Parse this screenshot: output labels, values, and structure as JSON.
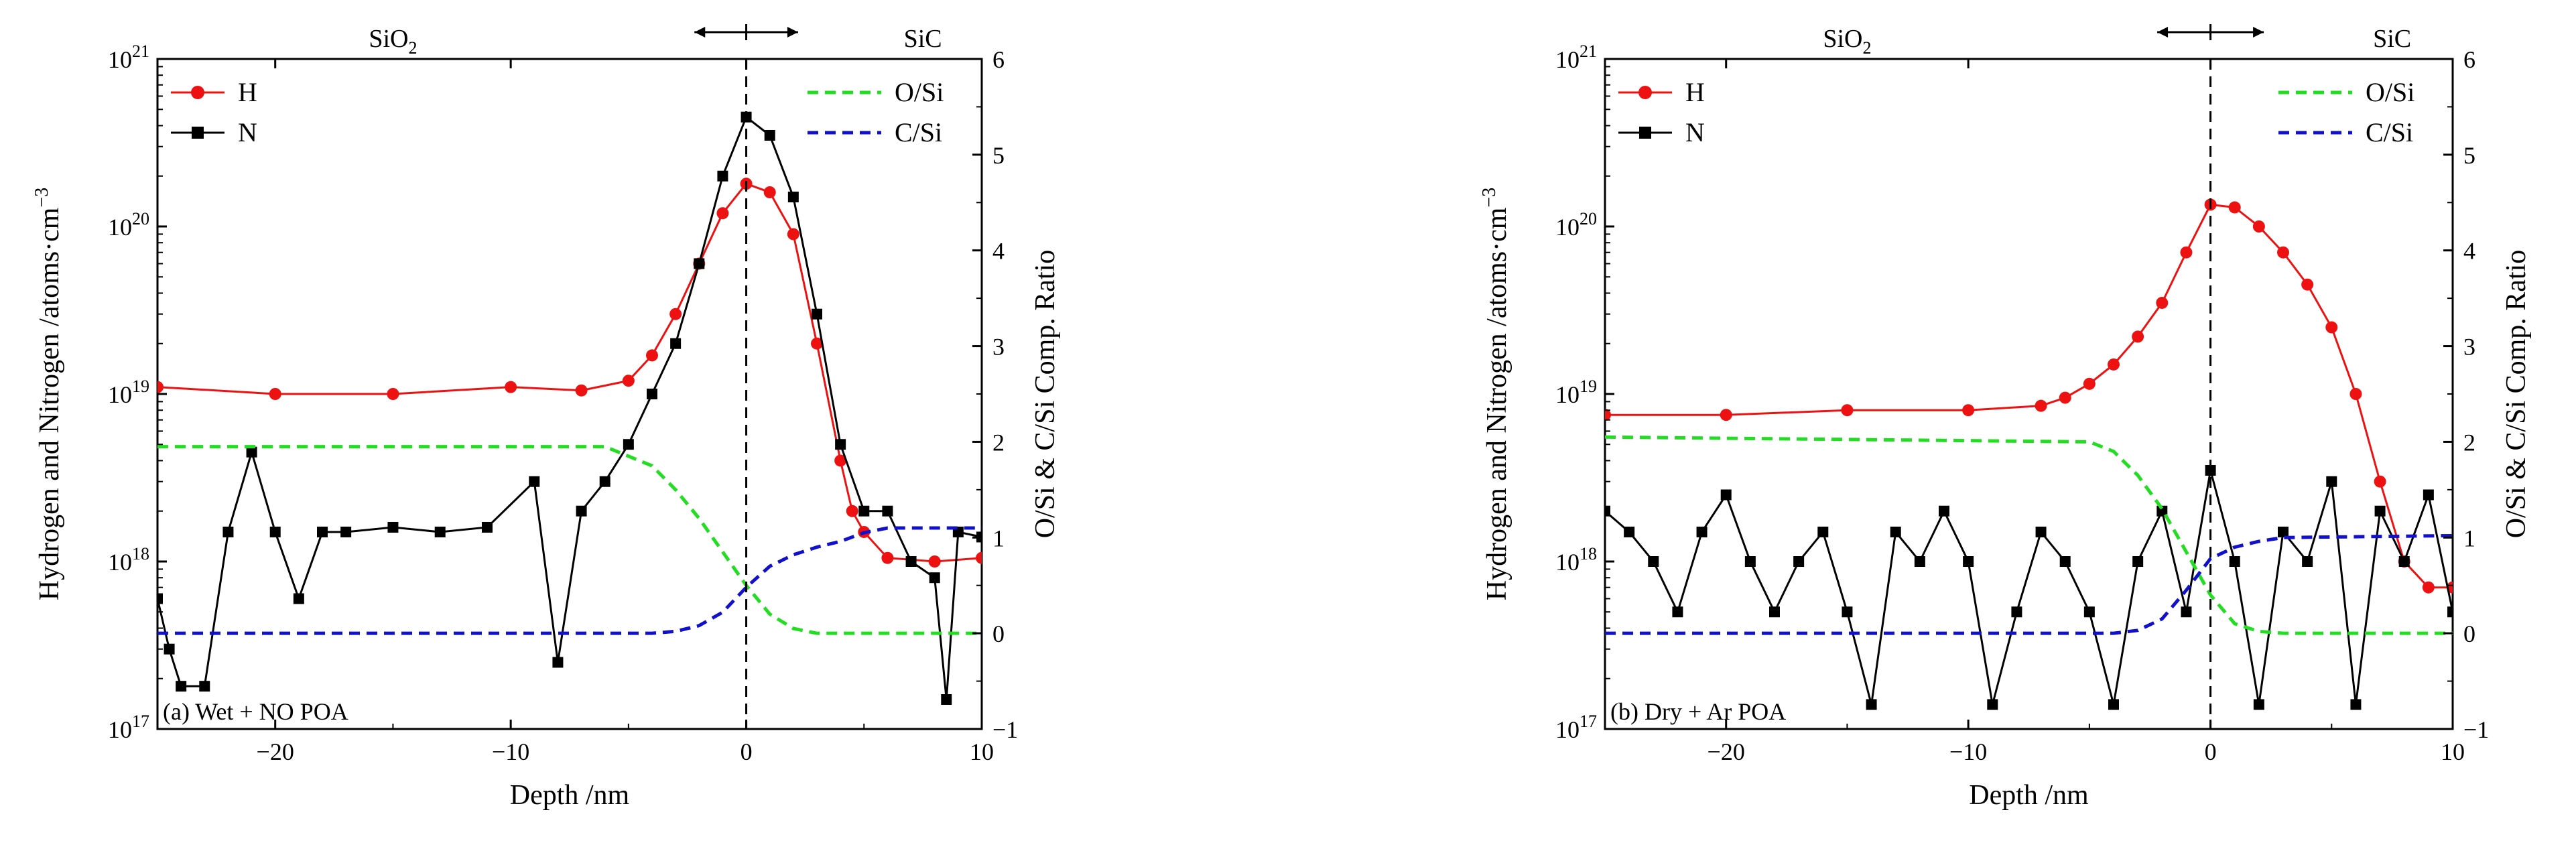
{
  "chart_data": [
    {
      "type": "line",
      "panel_label": "(a) Wet + NO POA",
      "xlabel": "Depth /nm",
      "ylabel": "Hydrogen and Nitrogen /atoms·cm",
      "ylabel_sup": "−3",
      "y2label": "O/Si & C/Si Comp. Ratio",
      "top_labels": {
        "left": "SiO",
        "left_sub": "2",
        "right": "SiC"
      },
      "xlim": [
        -25,
        10
      ],
      "xticks": [
        -20,
        -10,
        0,
        10
      ],
      "xtick_labels": [
        "−20",
        "−10",
        "0",
        "10"
      ],
      "ylim_log": [
        17,
        21
      ],
      "yticks": [
        {
          "base": "10",
          "exp": "17"
        },
        {
          "base": "10",
          "exp": "18"
        },
        {
          "base": "10",
          "exp": "19"
        },
        {
          "base": "10",
          "exp": "20"
        },
        {
          "base": "10",
          "exp": "21"
        }
      ],
      "y2lim": [
        -1,
        6
      ],
      "y2ticks": [
        "−1",
        "0",
        "1",
        "2",
        "3",
        "4",
        "5",
        "6"
      ],
      "series": [
        {
          "name": "H",
          "color": "#ee1111",
          "marker": "circle",
          "x": [
            -25,
            -20,
            -15,
            -10,
            -7,
            -5,
            -4,
            -3,
            -2,
            -1,
            0,
            1,
            2,
            3,
            4,
            4.5,
            5,
            6,
            8,
            10
          ],
          "y": [
            1.1e+19,
            1e+19,
            1e+19,
            1.1e+19,
            1.05e+19,
            1.2e+19,
            1.7e+19,
            3e+19,
            6e+19,
            1.2e+20,
            1.8e+20,
            1.6e+20,
            9e+19,
            2e+19,
            4e+18,
            2e+18,
            1.5e+18,
            1.05e+18,
            1e+18,
            1.05e+18
          ]
        },
        {
          "name": "N",
          "color": "#000000",
          "marker": "square",
          "x": [
            -25,
            -24.5,
            -24,
            -23,
            -22,
            -21,
            -20,
            -19,
            -18,
            -17,
            -15,
            -13,
            -11,
            -9,
            -8,
            -7,
            -6,
            -5,
            -4,
            -3,
            -2,
            -1,
            0,
            1,
            2,
            3,
            4,
            5,
            6,
            7,
            8,
            8.5,
            9,
            10
          ],
          "y": [
            6e+17,
            3e+17,
            1.8e+17,
            1.8e+17,
            1.5e+18,
            4.5e+18,
            1.5e+18,
            6e+17,
            1.5e+18,
            1.5e+18,
            1.6e+18,
            1.5e+18,
            1.6e+18,
            3e+18,
            2.5e+17,
            2e+18,
            3e+18,
            5e+18,
            1e+19,
            2e+19,
            6e+19,
            2e+20,
            4.5e+20,
            3.5e+20,
            1.5e+20,
            3e+19,
            5e+18,
            2e+18,
            2e+18,
            1e+18,
            8e+17,
            1.5e+17,
            1.5e+18,
            1.4e+18
          ]
        },
        {
          "name": "O/Si",
          "color": "#22dd22",
          "dash": true,
          "x": [
            -25,
            -6,
            -4,
            -3,
            -2,
            -1,
            0,
            1,
            2,
            3,
            5,
            10
          ],
          "y": [
            1.95,
            1.95,
            1.75,
            1.5,
            1.2,
            0.85,
            0.5,
            0.2,
            0.05,
            0.0,
            0.0,
            0.0
          ]
        },
        {
          "name": "C/Si",
          "color": "#1111cc",
          "dash": true,
          "x": [
            -25,
            -4,
            -3,
            -2,
            -1,
            0,
            1,
            2,
            3,
            4,
            5,
            6,
            10
          ],
          "y": [
            0.0,
            0.0,
            0.02,
            0.08,
            0.22,
            0.48,
            0.7,
            0.82,
            0.9,
            0.96,
            1.05,
            1.1,
            1.1
          ]
        }
      ]
    },
    {
      "type": "line",
      "panel_label": "(b) Dry + Ar POA",
      "xlabel": "Depth /nm",
      "ylabel": "Hydrogen and Nitrogen /atoms·cm",
      "ylabel_sup": "−3",
      "y2label": "O/Si & C/Si Comp. Ratio",
      "top_labels": {
        "left": "SiO",
        "left_sub": "2",
        "right": "SiC"
      },
      "xlim": [
        -25,
        10
      ],
      "xticks": [
        -20,
        -10,
        0,
        10
      ],
      "xtick_labels": [
        "−20",
        "−10",
        "0",
        "10"
      ],
      "ylim_log": [
        17,
        21
      ],
      "yticks": [
        {
          "base": "10",
          "exp": "17"
        },
        {
          "base": "10",
          "exp": "18"
        },
        {
          "base": "10",
          "exp": "19"
        },
        {
          "base": "10",
          "exp": "20"
        },
        {
          "base": "10",
          "exp": "21"
        }
      ],
      "y2lim": [
        -1,
        6
      ],
      "y2ticks": [
        "−1",
        "0",
        "1",
        "2",
        "3",
        "4",
        "5",
        "6"
      ],
      "series": [
        {
          "name": "H",
          "color": "#ee1111",
          "marker": "circle",
          "x": [
            -25,
            -20,
            -15,
            -10,
            -7,
            -6,
            -5,
            -4,
            -3,
            -2,
            -1,
            0,
            1,
            2,
            3,
            4,
            5,
            6,
            7,
            8,
            9,
            10
          ],
          "y": [
            7.5e+18,
            7.5e+18,
            8e+18,
            8e+18,
            8.5e+18,
            9.5e+18,
            1.15e+19,
            1.5e+19,
            2.2e+19,
            3.5e+19,
            7e+19,
            1.35e+20,
            1.3e+20,
            1e+20,
            7e+19,
            4.5e+19,
            2.5e+19,
            1e+19,
            3e+18,
            1e+18,
            7e+17,
            7e+17
          ]
        },
        {
          "name": "N",
          "color": "#000000",
          "marker": "square",
          "x": [
            -25,
            -24,
            -23,
            -22,
            -21,
            -20,
            -19,
            -18,
            -17,
            -16,
            -15,
            -14,
            -13,
            -12,
            -11,
            -10,
            -9,
            -8,
            -7,
            -6,
            -5,
            -4,
            -3,
            -2,
            -1,
            0,
            1,
            2,
            3,
            4,
            5,
            6,
            7,
            8,
            9,
            10
          ],
          "y": [
            2e+18,
            1.5e+18,
            1e+18,
            5e+17,
            1.5e+18,
            2.5e+18,
            1e+18,
            5e+17,
            1e+18,
            1.5e+18,
            5e+17,
            1.4e+17,
            1.5e+18,
            1e+18,
            2e+18,
            1e+18,
            1.4e+17,
            5e+17,
            1.5e+18,
            1e+18,
            5e+17,
            1.4e+17,
            1e+18,
            2e+18,
            5e+17,
            3.5e+18,
            1e+18,
            1.4e+17,
            1.5e+18,
            1e+18,
            3e+18,
            1.4e+17,
            2e+18,
            1e+18,
            2.5e+18,
            5e+17
          ]
        },
        {
          "name": "O/Si",
          "color": "#22dd22",
          "dash": true,
          "x": [
            -25,
            -5,
            -4,
            -3,
            -2,
            -1,
            0,
            1,
            2,
            3,
            10
          ],
          "y": [
            2.05,
            2.0,
            1.9,
            1.65,
            1.3,
            0.85,
            0.4,
            0.1,
            0.02,
            0.0,
            0.0
          ]
        },
        {
          "name": "C/Si",
          "color": "#1111cc",
          "dash": true,
          "x": [
            -25,
            -4,
            -3,
            -2,
            -1,
            0,
            1,
            2,
            3,
            10
          ],
          "y": [
            0.0,
            0.0,
            0.03,
            0.15,
            0.45,
            0.78,
            0.9,
            0.96,
            1.0,
            1.02
          ]
        }
      ]
    }
  ]
}
